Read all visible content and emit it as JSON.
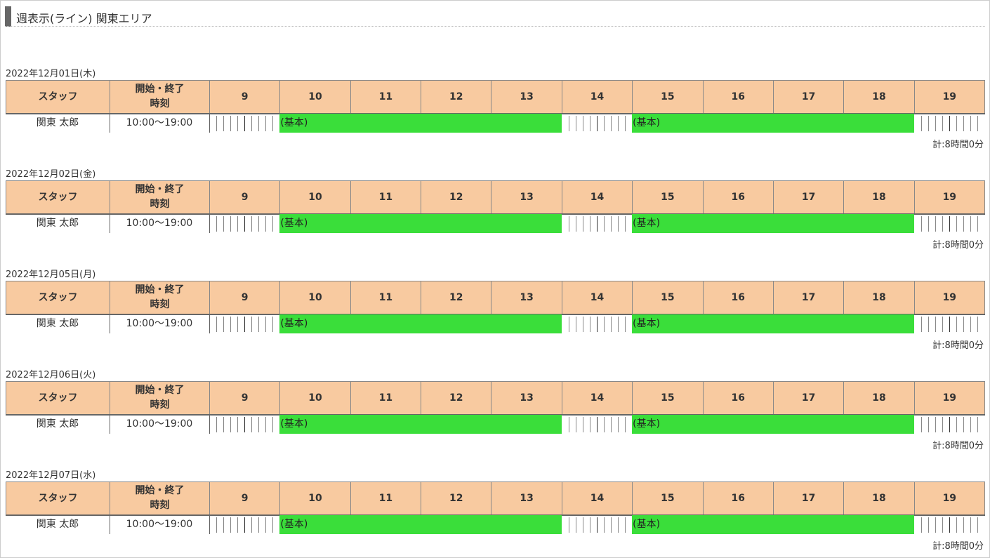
{
  "header": {
    "title": "週表示(ライン) 関東エリア"
  },
  "columns": {
    "staff": "スタッフ",
    "time": [
      "開始・終了",
      "時刻"
    ],
    "hours": [
      9,
      10,
      11,
      12,
      13,
      14,
      15,
      16,
      17,
      18,
      19
    ]
  },
  "days": [
    {
      "date": "2022年12月01日(木)",
      "rows": [
        {
          "staff": "関東 太郎",
          "time": "10:00〜19:00",
          "blocks": [
            {
              "label": "(基本)",
              "start": 10,
              "end": 14
            },
            {
              "label": "(基本)",
              "start": 15,
              "end": 19
            }
          ],
          "total": "計:8時間0分"
        }
      ]
    },
    {
      "date": "2022年12月02日(金)",
      "rows": [
        {
          "staff": "関東 太郎",
          "time": "10:00〜19:00",
          "blocks": [
            {
              "label": "(基本)",
              "start": 10,
              "end": 14
            },
            {
              "label": "(基本)",
              "start": 15,
              "end": 19
            }
          ],
          "total": "計:8時間0分"
        }
      ]
    },
    {
      "date": "2022年12月05日(月)",
      "rows": [
        {
          "staff": "関東 太郎",
          "time": "10:00〜19:00",
          "blocks": [
            {
              "label": "(基本)",
              "start": 10,
              "end": 14
            },
            {
              "label": "(基本)",
              "start": 15,
              "end": 19
            }
          ],
          "total": "計:8時間0分"
        }
      ]
    },
    {
      "date": "2022年12月06日(火)",
      "rows": [
        {
          "staff": "関東 太郎",
          "time": "10:00〜19:00",
          "blocks": [
            {
              "label": "(基本)",
              "start": 10,
              "end": 14
            },
            {
              "label": "(基本)",
              "start": 15,
              "end": 19
            }
          ],
          "total": "計:8時間0分"
        }
      ]
    },
    {
      "date": "2022年12月07日(水)",
      "rows": [
        {
          "staff": "関東 太郎",
          "time": "10:00〜19:00",
          "blocks": [
            {
              "label": "(基本)",
              "start": 10,
              "end": 14
            },
            {
              "label": "(基本)",
              "start": 15,
              "end": 19
            }
          ],
          "total": "計:8時間0分"
        }
      ]
    }
  ]
}
